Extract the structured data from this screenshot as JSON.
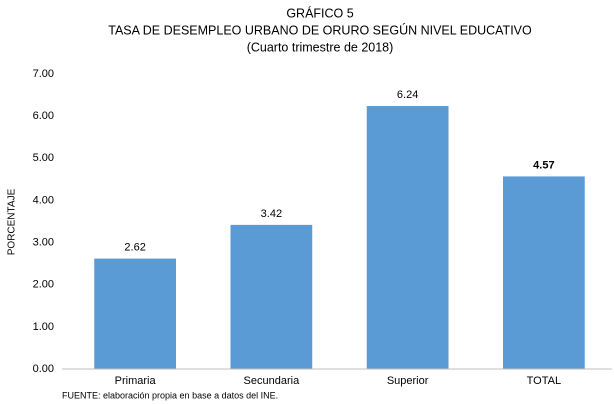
{
  "chart_data": {
    "type": "bar",
    "title": "GRÁFICO 5",
    "subtitle": [
      "TASA DE DESEMPLEO URBANO DE ORURO SEGÚN NIVEL EDUCATIVO",
      "(Cuarto trimestre de 2018)"
    ],
    "y_label": "PORCENTAJE",
    "categories": [
      "Primaria",
      "Secundaria",
      "Superior",
      "TOTAL"
    ],
    "values": [
      2.62,
      3.42,
      6.24,
      4.57
    ],
    "color": "#5b9bd5",
    "ylim": [
      0,
      7
    ],
    "yticks": [
      {
        "value": 0,
        "label": "0.00"
      },
      {
        "value": 1,
        "label": "1.00"
      },
      {
        "value": 2,
        "label": "2.00"
      },
      {
        "value": 3,
        "label": "3.00"
      },
      {
        "value": 4,
        "label": "4.00"
      },
      {
        "value": 5,
        "label": "5.00"
      },
      {
        "value": 6,
        "label": "6.00"
      },
      {
        "value": 7,
        "label": "7.00"
      }
    ],
    "grid": false,
    "source": "FUENTE: elaboración propia en base a datos del INE."
  }
}
